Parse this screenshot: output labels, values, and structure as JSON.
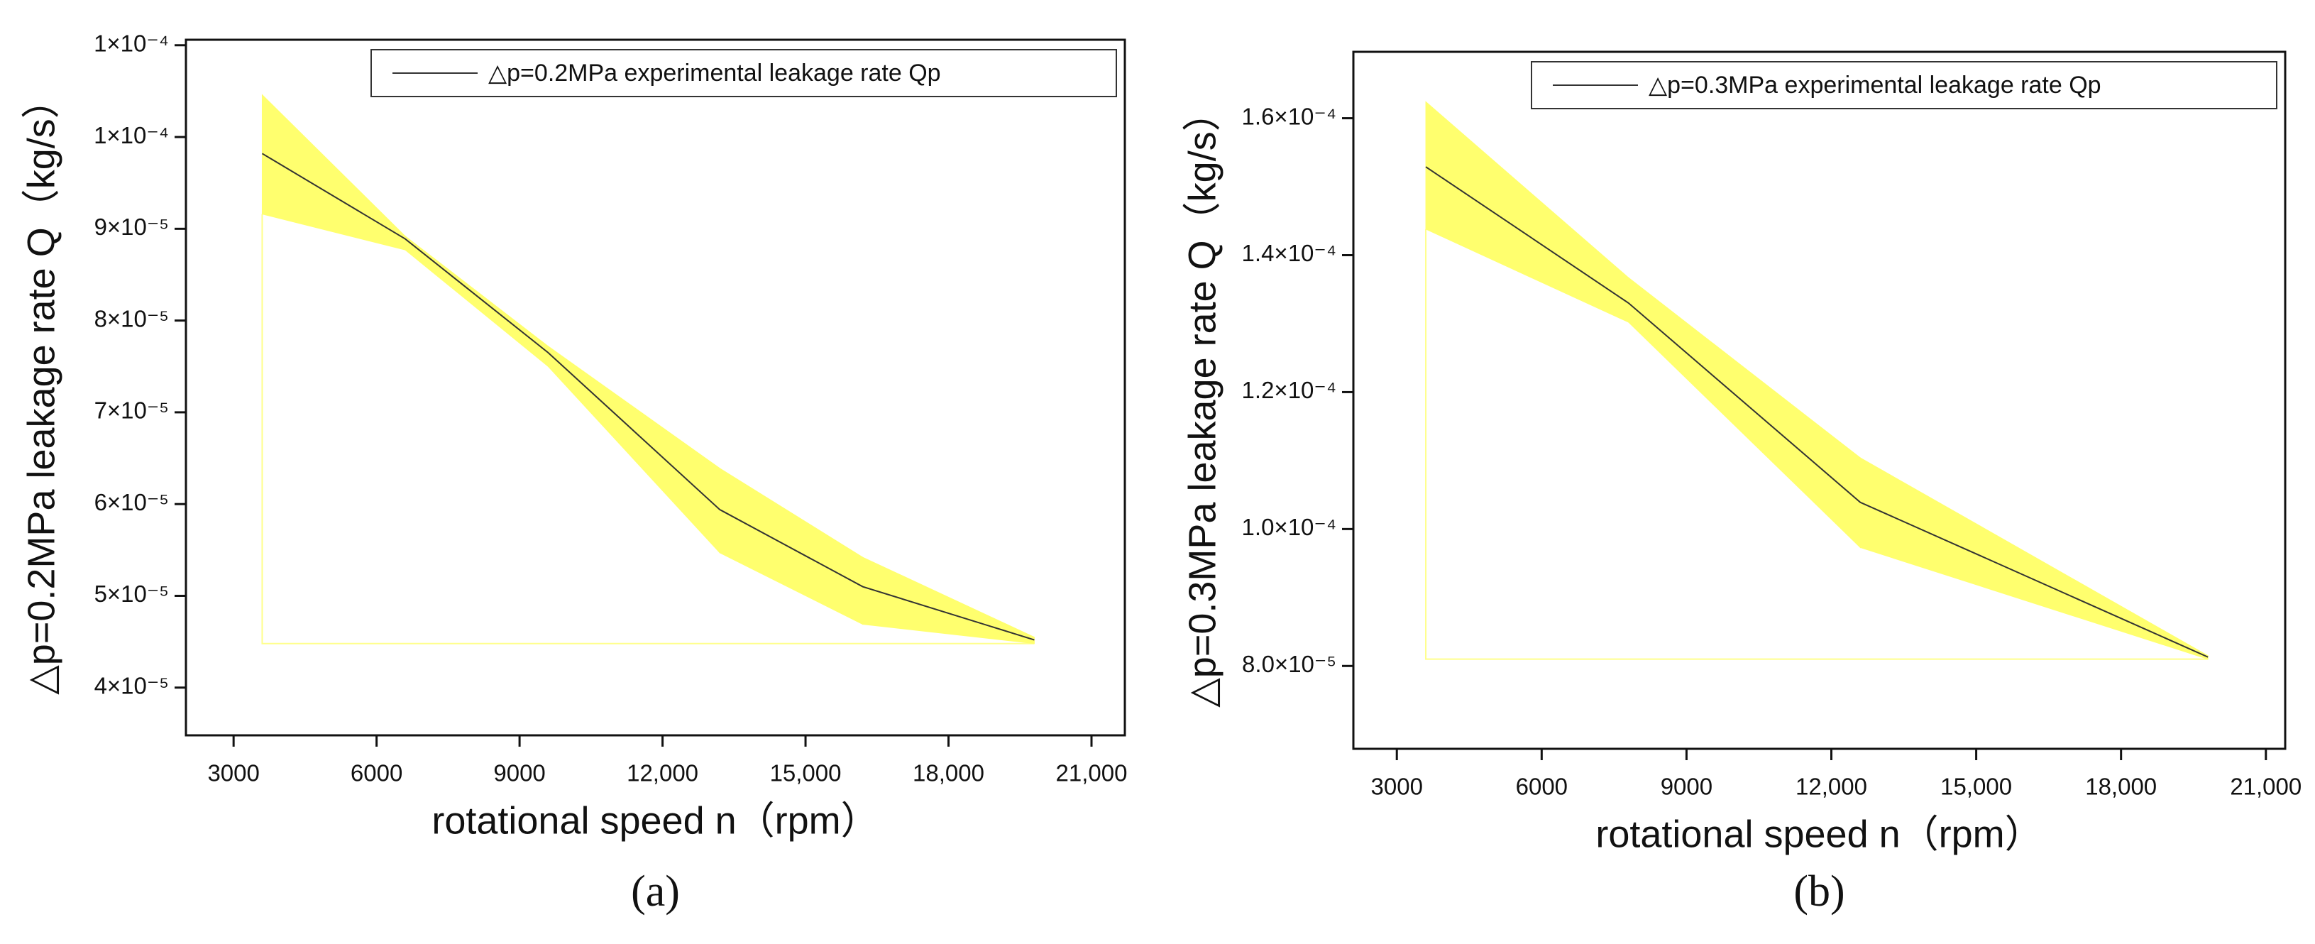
{
  "chart_data": [
    {
      "type": "line",
      "x": [
        3600,
        6600,
        9600,
        13200,
        16200,
        19800
      ],
      "series": [
        {
          "name": "△p=0.2MPa experimental leakage rate Qp",
          "color": "#333333",
          "values": [
            9.82e-05,
            8.89e-05,
            7.65e-05,
            5.94e-05,
            5.1e-05,
            4.52e-05
          ]
        }
      ],
      "band_upper": [
        0.0001046,
        8.92e-05,
        7.72e-05,
        6.39e-05,
        5.42e-05,
        4.55e-05
      ],
      "band_lower": [
        9.16e-05,
        8.77e-05,
        7.5e-05,
        5.47e-05,
        4.69e-05,
        4.48e-05
      ],
      "band_color": "#ffff6e",
      "xlabel": "rotational speed n（rpm）",
      "ylabel": "△p=0.2MPa leakage rate Q（kg/s）",
      "caption": "(a)",
      "legend": "upper right",
      "xlim": [
        2000,
        21700
      ],
      "xticks": [
        3000,
        6000,
        9000,
        {
          "value": 12000,
          "label": "12,000"
        },
        {
          "value": 15000,
          "label": "15,000"
        },
        {
          "value": 18000,
          "label": "18,000"
        },
        {
          "value": 21000,
          "label": "21,000"
        }
      ],
      "ylim": [
        3.48e-05,
        0.0001106
      ],
      "yticks": [
        {
          "value": 4e-05,
          "label": "4×10⁻⁵"
        },
        {
          "value": 5e-05,
          "label": "5×10⁻⁵"
        },
        {
          "value": 6e-05,
          "label": "6×10⁻⁵"
        },
        {
          "value": 7e-05,
          "label": "7×10⁻⁵"
        },
        {
          "value": 8e-05,
          "label": "8×10⁻⁵"
        },
        {
          "value": 9e-05,
          "label": "9×10⁻⁵"
        },
        {
          "value": 0.0001,
          "label": "1×10⁻⁴"
        },
        {
          "value": 0.00011,
          "label": "1×10⁻⁴"
        }
      ]
    },
    {
      "type": "line",
      "x": [
        3600,
        7800,
        12600,
        19800
      ],
      "series": [
        {
          "name": "△p=0.3MPa experimental leakage rate Qp",
          "color": "#333333",
          "values": [
            0.0001529,
            0.000133,
            0.0001039,
            8.13e-05
          ]
        }
      ],
      "band_upper": [
        0.0001624,
        0.0001367,
        0.0001104,
        8.15e-05
      ],
      "band_lower": [
        0.0001438,
        0.0001302,
        9.73e-05,
        8.1e-05
      ],
      "band_color": "#ffff6e",
      "xlabel": "rotational speed n（rpm）",
      "ylabel": "△p=0.3MPa leakage rate Q（kg/s）",
      "caption": "(b)",
      "legend": "upper right",
      "xlim": [
        2100,
        21400
      ],
      "xticks": [
        3000,
        6000,
        9000,
        {
          "value": 12000,
          "label": "12,000"
        },
        {
          "value": 15000,
          "label": "15,000"
        },
        {
          "value": 18000,
          "label": "18,000"
        },
        {
          "value": 21000,
          "label": "21,000"
        }
      ],
      "ylim": [
        6.79e-05,
        0.0001697
      ],
      "yticks": [
        {
          "value": 8e-05,
          "label": "8.0×10⁻⁵"
        },
        {
          "value": 0.0001,
          "label": "1.0×10⁻⁴"
        },
        {
          "value": 0.00012,
          "label": "1.2×10⁻⁴"
        },
        {
          "value": 0.00014,
          "label": "1.4×10⁻⁴"
        },
        {
          "value": 0.00016,
          "label": "1.6×10⁻⁴"
        }
      ]
    }
  ]
}
